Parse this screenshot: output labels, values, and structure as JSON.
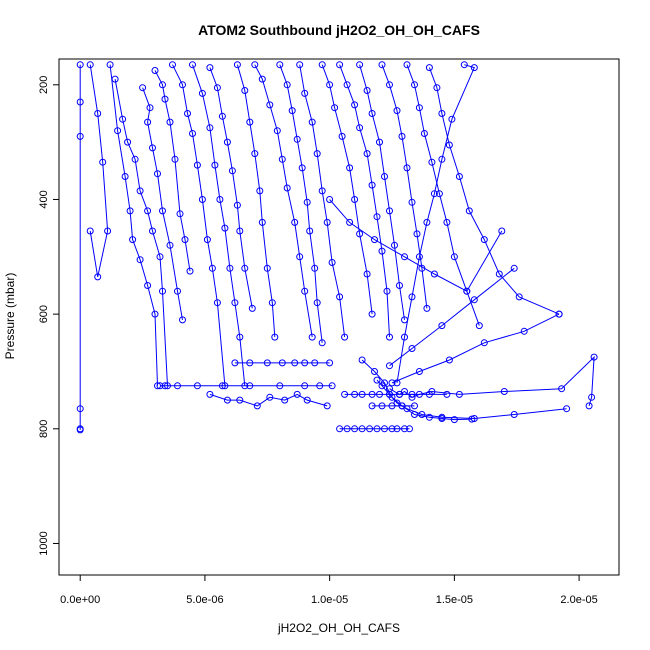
{
  "chart_data": {
    "type": "line",
    "title": "ATOM2 Southbound jH2O2_OH_OH_CAFS",
    "xlabel": "jH2O2_OH_OH_CAFS",
    "ylabel": "Pressure (mbar)",
    "xlim": [
      -8.5e-07,
      2.16e-05
    ],
    "ylim": [
      1055,
      155
    ],
    "y_reversed": true,
    "grid": false,
    "marker": "open-circle",
    "color": "#0000ff",
    "x_ticks": [
      0,
      5e-06,
      1e-05,
      1.5e-05,
      2e-05
    ],
    "x_tick_labels": [
      "0.0e+00",
      "5.0e-06",
      "1.0e-05",
      "1.5e-05",
      "2.0e-05"
    ],
    "y_ticks": [
      200,
      400,
      600,
      800,
      1000
    ],
    "y_tick_labels": [
      "200",
      "400",
      "600",
      "800",
      "1000"
    ],
    "series": [
      {
        "x": [
          0.0,
          0.0,
          0.0,
          0.0,
          0.0,
          0.0
        ],
        "y": [
          165,
          230,
          290,
          765,
          800,
          802
        ]
      },
      {
        "x": [
          4e-07,
          7e-07,
          9e-07,
          1.1e-06,
          7e-07,
          4e-07
        ],
        "y": [
          165,
          250,
          335,
          455,
          535,
          455
        ]
      },
      {
        "x": [
          1.2e-06,
          1.5e-06,
          1.8e-06,
          2e-06,
          2.1e-06,
          2.4e-06,
          2.7e-06,
          3e-06,
          3.1e-06
        ],
        "y": [
          165,
          280,
          360,
          420,
          470,
          505,
          550,
          600,
          725
        ]
      },
      {
        "x": [
          1.4e-06,
          1.7e-06,
          1.9e-06,
          2.2e-06,
          2.4e-06,
          2.7e-06,
          2.9e-06,
          3.2e-06,
          3.3e-06,
          3.5e-06
        ],
        "y": [
          190,
          260,
          300,
          330,
          385,
          420,
          455,
          500,
          560,
          725
        ]
      },
      {
        "x": [
          2.5e-06,
          2.8e-06,
          2.7e-06,
          2.9e-06,
          3.1e-06,
          3.3e-06,
          3.6e-06,
          3.9e-06,
          4.1e-06
        ],
        "y": [
          205,
          240,
          265,
          310,
          355,
          420,
          480,
          560,
          610
        ]
      },
      {
        "x": [
          3e-06,
          3.3e-06,
          3.4e-06,
          3.6e-06,
          3.8e-06,
          4e-06,
          4.2e-06,
          4.4e-06
        ],
        "y": [
          175,
          200,
          225,
          265,
          330,
          425,
          470,
          525
        ]
      },
      {
        "x": [
          3.7e-06,
          4.1e-06,
          4.3e-06,
          4.5e-06,
          4.7e-06,
          4.9e-06,
          5.1e-06,
          5.3e-06,
          5.5e-06,
          5.8e-06
        ],
        "y": [
          165,
          200,
          250,
          285,
          340,
          400,
          470,
          520,
          580,
          725
        ]
      },
      {
        "x": [
          4.5e-06,
          4.9e-06,
          5.2e-06,
          5.4e-06,
          5.6e-06,
          5.8e-06,
          6e-06,
          6.2e-06,
          6.4e-06,
          6.6e-06
        ],
        "y": [
          165,
          215,
          275,
          340,
          400,
          450,
          520,
          580,
          640,
          725
        ]
      },
      {
        "x": [
          5.2e-06,
          5.5e-06,
          5.7e-06,
          5.9e-06,
          6.1e-06,
          6.3e-06,
          6.4e-06,
          6.6e-06,
          6.9e-06
        ],
        "y": [
          170,
          205,
          255,
          300,
          350,
          410,
          455,
          520,
          590
        ]
      },
      {
        "x": [
          6.3e-06,
          6.6e-06,
          6.8e-06,
          7e-06,
          7.2e-06,
          7.3e-06,
          7.5e-06,
          7.7e-06,
          7.8e-06
        ],
        "y": [
          165,
          210,
          265,
          320,
          385,
          440,
          520,
          580,
          640
        ]
      },
      {
        "x": [
          7e-06,
          7.3e-06,
          7.6e-06,
          7.9e-06,
          8.1e-06,
          8.3e-06,
          8.6e-06,
          8.8e-06,
          9e-06,
          9.3e-06
        ],
        "y": [
          165,
          190,
          235,
          280,
          330,
          380,
          440,
          500,
          560,
          640
        ]
      },
      {
        "x": [
          8e-06,
          8.3e-06,
          8.5e-06,
          8.7e-06,
          8.9e-06,
          9.1e-06,
          9.2e-06,
          9.4e-06,
          9.5e-06,
          9.7e-06
        ],
        "y": [
          165,
          200,
          245,
          295,
          345,
          405,
          455,
          520,
          580,
          650
        ]
      },
      {
        "x": [
          8.8e-06,
          9e-06,
          9.3e-06,
          9.5e-06,
          9.7e-06,
          9.9e-06,
          1.01e-05,
          1.04e-05,
          1.06e-05
        ],
        "y": [
          165,
          215,
          265,
          320,
          385,
          440,
          510,
          570,
          640
        ]
      },
      {
        "x": [
          9.7e-06,
          1e-05,
          1.02e-05,
          1.05e-05,
          1.08e-05,
          1.1e-05,
          1.12e-05,
          1.15e-05,
          1.17e-05
        ],
        "y": [
          165,
          200,
          240,
          290,
          345,
          400,
          460,
          530,
          600
        ]
      },
      {
        "x": [
          1.04e-05,
          1.07e-05,
          1.1e-05,
          1.12e-05,
          1.15e-05,
          1.17e-05,
          1.19e-05,
          1.21e-05,
          1.23e-05,
          1.24e-05
        ],
        "y": [
          165,
          200,
          235,
          275,
          320,
          375,
          430,
          490,
          560,
          640
        ]
      },
      {
        "x": [
          1.12e-05,
          1.15e-05,
          1.17e-05,
          1.2e-05,
          1.22e-05,
          1.24e-05,
          1.26e-05,
          1.28e-05,
          1.3e-05
        ],
        "y": [
          165,
          210,
          250,
          300,
          360,
          420,
          480,
          550,
          610
        ]
      },
      {
        "x": [
          1.21e-05,
          1.24e-05,
          1.27e-05,
          1.29e-05,
          1.31e-05,
          1.33e-05,
          1.35e-05,
          1.37e-05,
          1.39e-05
        ],
        "y": [
          165,
          200,
          245,
          290,
          345,
          405,
          460,
          520,
          590
        ]
      },
      {
        "x": [
          1.31e-05,
          1.34e-05,
          1.36e-05,
          1.38e-05,
          1.41e-05,
          1.44e-05,
          1.47e-05,
          1.5e-05,
          1.55e-05,
          1.6e-05
        ],
        "y": [
          165,
          200,
          240,
          285,
          335,
          390,
          440,
          500,
          560,
          620
        ]
      },
      {
        "x": [
          1.4e-05,
          1.43e-05,
          1.45e-05,
          1.48e-05,
          1.52e-05,
          1.56e-05,
          1.62e-05,
          1.68e-05,
          1.76e-05,
          1.92e-05
        ],
        "y": [
          170,
          205,
          250,
          305,
          360,
          420,
          470,
          530,
          570,
          600
        ]
      },
      {
        "x": [
          1.54e-05,
          1.58e-05,
          1.49e-05,
          1.45e-05,
          1.42e-05,
          1.39e-05,
          1.36e-05,
          1.33e-05,
          1.3e-05,
          1.27e-05
        ],
        "y": [
          165,
          170,
          260,
          330,
          390,
          440,
          500,
          570,
          640,
          720
        ]
      },
      {
        "x": [
          1e-05,
          1.08e-05,
          1.18e-05,
          1.3e-05,
          1.42e-05,
          1.55e-05,
          1.69e-05
        ],
        "y": [
          400,
          440,
          470,
          500,
          530,
          560,
          455
        ]
      },
      {
        "x": [
          1.24e-05,
          1.28e-05,
          1.3e-05,
          1.33e-05,
          1.36e-05,
          1.41e-05,
          1.52e-05,
          1.7e-05,
          1.93e-05,
          2.06e-05,
          2.05e-05,
          2.04e-05
        ],
        "y": [
          730,
          740,
          735,
          745,
          740,
          735,
          740,
          735,
          730,
          675,
          745,
          760
        ]
      },
      {
        "x": [
          1.19e-05,
          1.21e-05,
          1.24e-05,
          1.27e-05,
          1.31e-05,
          1.37e-05,
          1.45e-05,
          1.58e-05,
          1.74e-05,
          1.95e-05
        ],
        "y": [
          715,
          725,
          740,
          755,
          765,
          775,
          780,
          782,
          775,
          765
        ]
      },
      {
        "x": [
          1.13e-05,
          1.18e-05,
          1.22e-05,
          1.25e-05,
          1.29e-05,
          1.34e-05,
          1.4e-05,
          1.45e-05,
          1.5e-05,
          1.57e-05
        ],
        "y": [
          680,
          700,
          720,
          745,
          760,
          775,
          780,
          782,
          784,
          783
        ]
      },
      {
        "x": [
          1.04e-05,
          1.07e-05,
          1.1e-05,
          1.13e-05,
          1.16e-05,
          1.19e-05,
          1.22e-05,
          1.25e-05,
          1.27e-05,
          1.3e-05,
          1.32e-05
        ],
        "y": [
          800,
          800,
          800,
          800,
          800,
          800,
          800,
          800,
          800,
          800,
          800
        ]
      },
      {
        "x": [
          3.2e-06,
          3.4e-06,
          3.9e-06,
          4.7e-06,
          5.7e-06,
          6.8e-06,
          8e-06,
          9e-06,
          9.6e-06,
          1.01e-05
        ],
        "y": [
          725,
          725,
          725,
          725,
          725,
          725,
          725,
          725,
          725,
          725
        ]
      },
      {
        "x": [
          5.2e-06,
          5.9e-06,
          6.4e-06,
          7.1e-06,
          7.6e-06,
          8.2e-06,
          8.7e-06,
          9.1e-06,
          9.9e-06
        ],
        "y": [
          740,
          750,
          750,
          760,
          745,
          750,
          740,
          750,
          760
        ]
      },
      {
        "x": [
          6.2e-06,
          6.8e-06,
          7.5e-06,
          8.1e-06,
          8.6e-06,
          9e-06,
          9.4e-06,
          1e-05
        ],
        "y": [
          685,
          685,
          685,
          685,
          685,
          685,
          685,
          685
        ]
      },
      {
        "x": [
          1.06e-05,
          1.1e-05,
          1.13e-05,
          1.17e-05,
          1.2e-05,
          1.24e-05,
          1.28e-05,
          1.33e-05,
          1.4e-05,
          1.47e-05
        ],
        "y": [
          740,
          740,
          740,
          740,
          740,
          740,
          740,
          740,
          740,
          740
        ]
      },
      {
        "x": [
          1.17e-05,
          1.21e-05,
          1.25e-05,
          1.29e-05,
          1.34e-05
        ],
        "y": [
          760,
          760,
          760,
          760,
          760
        ]
      },
      {
        "x": [
          1.25e-05,
          1.36e-05,
          1.48e-05,
          1.62e-05,
          1.78e-05,
          1.92e-05
        ],
        "y": [
          720,
          700,
          680,
          650,
          630,
          600
        ]
      },
      {
        "x": [
          1.24e-05,
          1.33e-05,
          1.45e-05,
          1.58e-05,
          1.74e-05
        ],
        "y": [
          690,
          660,
          620,
          575,
          520
        ]
      }
    ]
  }
}
